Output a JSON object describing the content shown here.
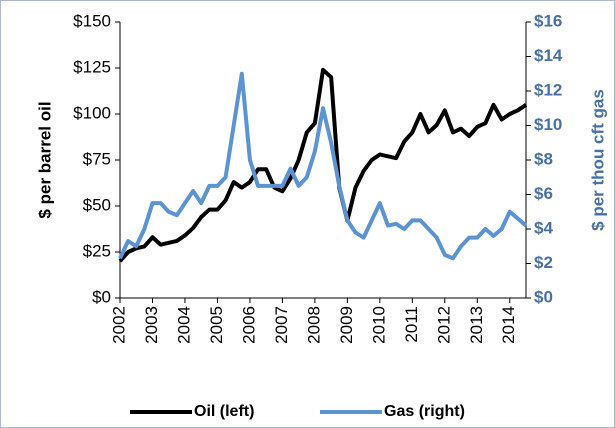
{
  "chart_data": {
    "type": "line",
    "x": [
      2002,
      2002.25,
      2002.5,
      2002.75,
      2003,
      2003.25,
      2003.5,
      2003.75,
      2004,
      2004.25,
      2004.5,
      2004.75,
      2005,
      2005.25,
      2005.5,
      2005.75,
      2006,
      2006.25,
      2006.5,
      2006.75,
      2007,
      2007.25,
      2007.5,
      2007.75,
      2008,
      2008.25,
      2008.5,
      2008.75,
      2009,
      2009.25,
      2009.5,
      2009.75,
      2010,
      2010.25,
      2010.5,
      2010.75,
      2011,
      2011.25,
      2011.5,
      2011.75,
      2012,
      2012.25,
      2012.5,
      2012.75,
      2013,
      2013.25,
      2013.5,
      2013.75,
      2014,
      2014.25,
      2014.5
    ],
    "series": [
      {
        "name": "Oil (left)",
        "color": "#000000",
        "values": [
          20,
          25,
          27,
          28,
          33,
          29,
          30,
          31,
          34,
          38,
          44,
          48,
          48,
          53,
          63,
          60,
          63,
          70,
          70,
          60,
          58,
          65,
          75,
          90,
          95,
          124,
          120,
          60,
          42,
          60,
          69,
          75,
          78,
          77,
          76,
          85,
          90,
          100,
          90,
          94,
          102,
          90,
          92,
          88,
          93,
          95,
          105,
          97,
          100,
          102,
          105
        ]
      },
      {
        "name": "Gas (right)",
        "color": "#5b93d3",
        "axis": "y2",
        "values": [
          2.3,
          3.3,
          3.0,
          4.0,
          5.5,
          5.5,
          5.0,
          4.8,
          5.5,
          6.2,
          5.5,
          6.5,
          6.5,
          7.0,
          10,
          13,
          8,
          6.5,
          6.5,
          6.5,
          6.5,
          7.5,
          6.5,
          7.0,
          8.5,
          11,
          9,
          6.5,
          4.5,
          3.8,
          3.5,
          4.5,
          5.5,
          4.2,
          4.3,
          4.0,
          4.5,
          4.5,
          4.0,
          3.5,
          2.5,
          2.3,
          3.0,
          3.5,
          3.5,
          4.0,
          3.6,
          4.0,
          5.0,
          4.6,
          4.2
        ]
      }
    ],
    "ylabel": "$ per barrel oil",
    "y2label": "$ per thou cft gas",
    "xlim": [
      2002,
      2014.5
    ],
    "xticks": [
      2002,
      2003,
      2004,
      2005,
      2006,
      2007,
      2008,
      2009,
      2010,
      2011,
      2012,
      2013,
      2014
    ],
    "ylim": [
      0,
      150
    ],
    "yticks": [
      {
        "value": 0,
        "label": "$0"
      },
      {
        "value": 25,
        "label": "$25"
      },
      {
        "value": 50,
        "label": "$50"
      },
      {
        "value": 75,
        "label": "$75"
      },
      {
        "value": 100,
        "label": "$100"
      },
      {
        "value": 125,
        "label": "$125"
      },
      {
        "value": 150,
        "label": "$150"
      }
    ],
    "y2lim": [
      0,
      16
    ],
    "y2ticks": [
      {
        "value": 0,
        "label": "$0"
      },
      {
        "value": 2,
        "label": "$2"
      },
      {
        "value": 4,
        "label": "$4"
      },
      {
        "value": 6,
        "label": "$6"
      },
      {
        "value": 8,
        "label": "$8"
      },
      {
        "value": 10,
        "label": "$10"
      },
      {
        "value": 12,
        "label": "$12"
      },
      {
        "value": 14,
        "label": "$14"
      },
      {
        "value": 16,
        "label": "$16"
      }
    ],
    "legend": "bottom"
  }
}
